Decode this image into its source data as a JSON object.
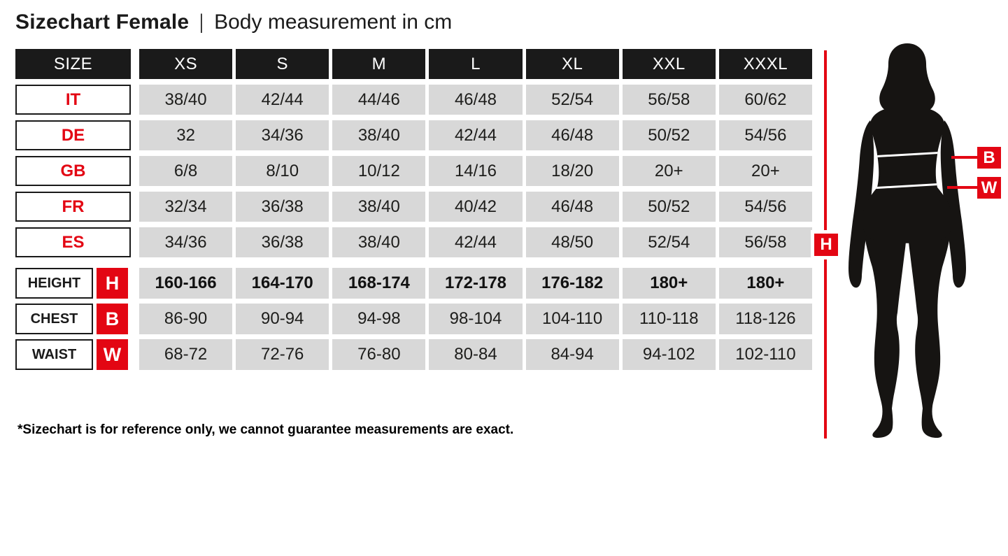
{
  "title": {
    "main": "Sizechart Female",
    "separator": "|",
    "subtitle": "Body measurement in cm"
  },
  "footnote": "*Sizechart is for reference only, we cannot guarantee measurements are exact.",
  "figure": {
    "height_badge": "H",
    "bust_badge": "B",
    "waist_badge": "W"
  },
  "colors": {
    "accent_red": "#e30613",
    "ink": "#1a1a1a",
    "cell_grey": "#d8d8d8"
  },
  "chart_data": {
    "type": "table",
    "title": "Sizechart Female",
    "subtitle": "Body measurement in cm",
    "size_label": "SIZE",
    "sizes": [
      "XS",
      "S",
      "M",
      "L",
      "XL",
      "XXL",
      "XXXL"
    ],
    "country_rows": [
      {
        "label": "IT",
        "values": [
          "38/40",
          "42/44",
          "44/46",
          "46/48",
          "52/54",
          "56/58",
          "60/62"
        ]
      },
      {
        "label": "DE",
        "values": [
          "32",
          "34/36",
          "38/40",
          "42/44",
          "46/48",
          "50/52",
          "54/56"
        ]
      },
      {
        "label": "GB",
        "values": [
          "6/8",
          "8/10",
          "10/12",
          "14/16",
          "18/20",
          "20+",
          "20+"
        ]
      },
      {
        "label": "FR",
        "values": [
          "32/34",
          "36/38",
          "38/40",
          "40/42",
          "46/48",
          "50/52",
          "54/56"
        ]
      },
      {
        "label": "ES",
        "values": [
          "34/36",
          "36/38",
          "38/40",
          "42/44",
          "48/50",
          "52/54",
          "56/58"
        ]
      }
    ],
    "measurement_rows": [
      {
        "label": "HEIGHT",
        "badge": "H",
        "bold": true,
        "values": [
          "160-166",
          "164-170",
          "168-174",
          "172-178",
          "176-182",
          "180+",
          "180+"
        ]
      },
      {
        "label": "CHEST",
        "badge": "B",
        "bold": false,
        "values": [
          "86-90",
          "90-94",
          "94-98",
          "98-104",
          "104-110",
          "110-118",
          "118-126"
        ]
      },
      {
        "label": "WAIST",
        "badge": "W",
        "bold": false,
        "values": [
          "68-72",
          "72-76",
          "76-80",
          "80-84",
          "84-94",
          "94-102",
          "102-110"
        ]
      }
    ]
  }
}
